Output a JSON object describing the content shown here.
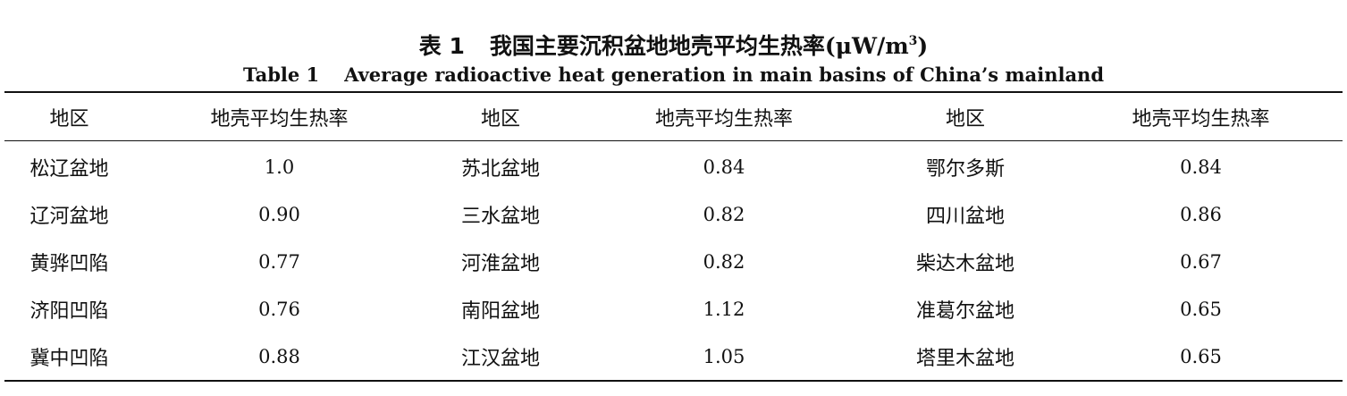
{
  "caption": {
    "cn_label": "表 1",
    "cn_title": "我国主要沉积盆地地壳平均生热率",
    "cn_unit_prefix": "(μW/m",
    "cn_unit_exp": "3",
    "cn_unit_suffix": ")",
    "en_label": "Table 1",
    "en_title": "Average radioactive heat generation in main basins of China’s mainland"
  },
  "table": {
    "headers": [
      "地区",
      "地壳平均生热率",
      "地区",
      "地壳平均生热率",
      "地区",
      "地壳平均生热率"
    ],
    "rows": [
      [
        "松辽盆地",
        "1.0",
        "苏北盆地",
        "0.84",
        "鄂尔多斯",
        "0.84"
      ],
      [
        "辽河盆地",
        "0.90",
        "三水盆地",
        "0.82",
        "四川盆地",
        "0.86"
      ],
      [
        "黄骅凹陷",
        "0.77",
        "河淮盆地",
        "0.82",
        "柴达木盆地",
        "0.67"
      ],
      [
        "济阳凹陷",
        "0.76",
        "南阳盆地",
        "1.12",
        "准葛尔盆地",
        "0.65"
      ],
      [
        "冀中凹陷",
        "0.88",
        "江汉盆地",
        "1.05",
        "塔里木盆地",
        "0.65"
      ]
    ]
  }
}
